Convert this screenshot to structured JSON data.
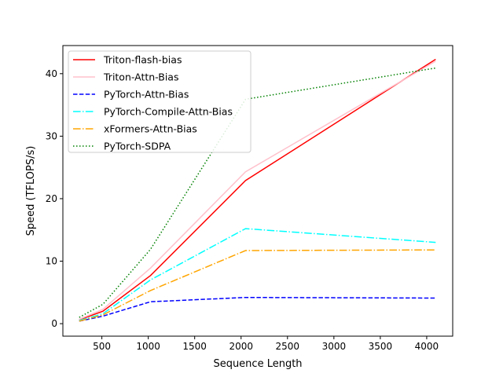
{
  "chart_data": {
    "type": "line",
    "title": "",
    "xlabel": "Sequence Length",
    "ylabel": "Speed (TFLOPS/s)",
    "xlim": [
      80,
      4280
    ],
    "ylim": [
      -2,
      44.5
    ],
    "x": [
      256,
      512,
      1024,
      2048,
      4096
    ],
    "xticks": [
      500,
      1000,
      1500,
      2000,
      2500,
      3000,
      3500,
      4000
    ],
    "yticks": [
      0,
      10,
      20,
      30,
      40
    ],
    "grid": false,
    "legend_position": "upper-left",
    "series": [
      {
        "name": "Triton-flash-bias",
        "color": "#ff0000",
        "dash": "solid",
        "values": [
          0.6,
          2.0,
          7.7,
          22.9,
          42.3
        ]
      },
      {
        "name": "Triton-Attn-Bias",
        "color": "#ffc0cb",
        "dash": "solid",
        "values": [
          0.7,
          2.3,
          8.9,
          24.3,
          42.0
        ]
      },
      {
        "name": "PyTorch-Attn-Bias",
        "color": "#0000ff",
        "dash": "dashed",
        "values": [
          0.4,
          1.2,
          3.5,
          4.2,
          4.1
        ]
      },
      {
        "name": "PyTorch-Compile-Attn-Bias",
        "color": "#00ffff",
        "dash": "dashdot",
        "values": [
          0.5,
          1.6,
          7.0,
          15.2,
          13.0
        ]
      },
      {
        "name": "xFormers-Attn-Bias",
        "color": "#ffa500",
        "dash": "dashdot",
        "values": [
          0.4,
          1.4,
          5.3,
          11.7,
          11.8
        ]
      },
      {
        "name": "PyTorch-SDPA",
        "color": "#008000",
        "dash": "dotted",
        "values": [
          1.0,
          3.1,
          11.9,
          35.9,
          40.9
        ]
      }
    ]
  }
}
